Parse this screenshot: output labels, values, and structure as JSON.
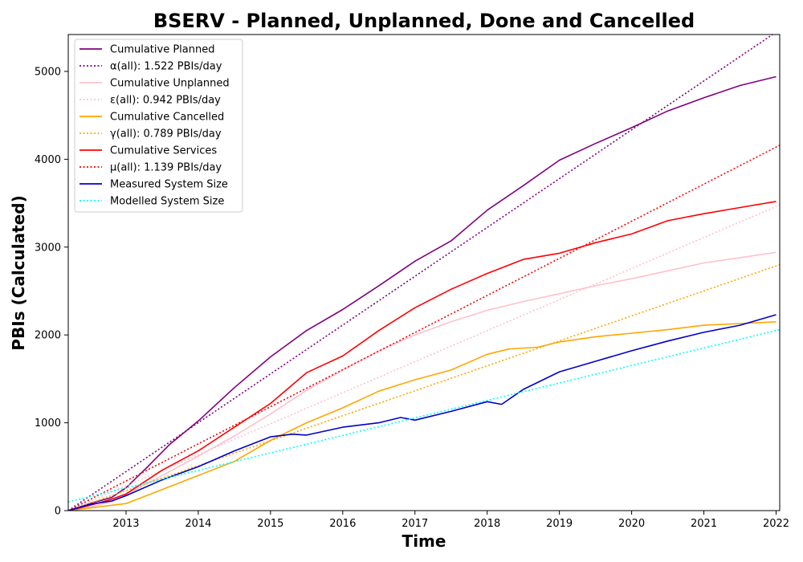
{
  "chart_data": {
    "type": "line",
    "title": "BSERV - Planned, Unplanned, Done  and Cancelled",
    "xlabel": "Time",
    "ylabel": "PBIs (Calculated)",
    "xlim": [
      2012.2,
      2022.05
    ],
    "ylim": [
      0,
      5420
    ],
    "x_ticks": [
      "2013",
      "2014",
      "2015",
      "2016",
      "2017",
      "2018",
      "2019",
      "2020",
      "2021",
      "2022"
    ],
    "y_ticks": [
      0,
      1000,
      2000,
      3000,
      4000,
      5000
    ],
    "grid": false,
    "legend_position": "upper-left",
    "series": [
      {
        "name": "Cumulative Planned",
        "color": "#800080",
        "style": "solid",
        "x": [
          2012.2,
          2012.5,
          2012.8,
          2013.0,
          2013.3,
          2013.6,
          2014.0,
          2014.5,
          2015.0,
          2015.5,
          2016.0,
          2016.5,
          2017.0,
          2017.5,
          2018.0,
          2018.5,
          2019.0,
          2019.5,
          2020.0,
          2020.5,
          2021.0,
          2021.5,
          2022.0
        ],
        "y": [
          0,
          80,
          150,
          260,
          500,
          750,
          1020,
          1400,
          1750,
          2050,
          2290,
          2560,
          2840,
          3070,
          3420,
          3700,
          3990,
          4180,
          4360,
          4550,
          4700,
          4840,
          4940
        ]
      },
      {
        "name": "α(all): 1.522 PBIs/day",
        "color": "#800080",
        "style": "dotted",
        "x": [
          2012.2,
          2022.05
        ],
        "y": [
          0,
          5475
        ]
      },
      {
        "name": "Cumulative Unplanned",
        "color": "#ffc0cb",
        "style": "solid",
        "x": [
          2012.2,
          2012.5,
          2012.8,
          2013.0,
          2013.5,
          2014.0,
          2014.5,
          2015.0,
          2015.5,
          2016.0,
          2016.5,
          2017.0,
          2017.5,
          2018.0,
          2018.5,
          2019.0,
          2019.5,
          2020.0,
          2020.5,
          2021.0,
          2021.5,
          2022.0
        ],
        "y": [
          0,
          40,
          100,
          180,
          400,
          620,
          850,
          1100,
          1370,
          1600,
          1820,
          2000,
          2150,
          2280,
          2380,
          2470,
          2560,
          2640,
          2730,
          2820,
          2880,
          2940
        ]
      },
      {
        "name": "ε(all): 0.942 PBIs/day",
        "color": "#ffc0cb",
        "style": "dotted",
        "x": [
          2012.2,
          2022.05
        ],
        "y": [
          0,
          3480
        ]
      },
      {
        "name": "Cumulative Cancelled",
        "color": "#ffa500",
        "style": "solid",
        "x": [
          2012.2,
          2012.5,
          2013.0,
          2013.5,
          2014.0,
          2014.5,
          2015.0,
          2015.5,
          2016.0,
          2016.5,
          2017.0,
          2017.5,
          2018.0,
          2018.3,
          2018.7,
          2019.0,
          2019.5,
          2020.0,
          2020.5,
          2021.0,
          2021.5,
          2022.0
        ],
        "y": [
          0,
          30,
          80,
          240,
          400,
          560,
          800,
          1000,
          1170,
          1360,
          1490,
          1600,
          1780,
          1840,
          1860,
          1920,
          1980,
          2020,
          2060,
          2110,
          2130,
          2150
        ]
      },
      {
        "name": "γ(all): 0.789 PBIs/day",
        "color": "#ffa500",
        "style": "dotted",
        "x": [
          2012.2,
          2022.05
        ],
        "y": [
          0,
          2800
        ]
      },
      {
        "name": "Cumulative Services",
        "color": "#ff0000",
        "style": "solid",
        "x": [
          2012.2,
          2012.5,
          2012.8,
          2013.0,
          2013.5,
          2014.0,
          2014.5,
          2015.0,
          2015.5,
          2016.0,
          2016.5,
          2017.0,
          2017.5,
          2018.0,
          2018.5,
          2019.0,
          2019.5,
          2020.0,
          2020.5,
          2021.0,
          2021.5,
          2022.0
        ],
        "y": [
          0,
          60,
          130,
          190,
          460,
          680,
          950,
          1220,
          1570,
          1760,
          2050,
          2310,
          2520,
          2700,
          2860,
          2930,
          3050,
          3150,
          3300,
          3380,
          3450,
          3520
        ]
      },
      {
        "name": "μ(all): 1.139 PBIs/day",
        "color": "#ff0000",
        "style": "dotted",
        "x": [
          2012.2,
          2022.05
        ],
        "y": [
          0,
          4160
        ]
      },
      {
        "name": "Measured System Size",
        "color": "#0000cc",
        "style": "solid",
        "x": [
          2012.2,
          2012.5,
          2012.8,
          2013.0,
          2013.5,
          2014.0,
          2014.5,
          2015.0,
          2015.3,
          2015.5,
          2016.0,
          2016.5,
          2016.8,
          2017.0,
          2017.5,
          2018.0,
          2018.2,
          2018.5,
          2019.0,
          2019.5,
          2020.0,
          2020.5,
          2021.0,
          2021.5,
          2022.0
        ],
        "y": [
          0,
          70,
          110,
          170,
          350,
          500,
          680,
          840,
          870,
          860,
          950,
          1000,
          1060,
          1030,
          1130,
          1240,
          1210,
          1380,
          1580,
          1700,
          1820,
          1930,
          2030,
          2110,
          2230
        ]
      },
      {
        "name": "Modelled System Size",
        "color": "#00ffff",
        "style": "dotted",
        "x": [
          2012.2,
          2022.05
        ],
        "y": [
          100,
          2060
        ]
      }
    ]
  }
}
